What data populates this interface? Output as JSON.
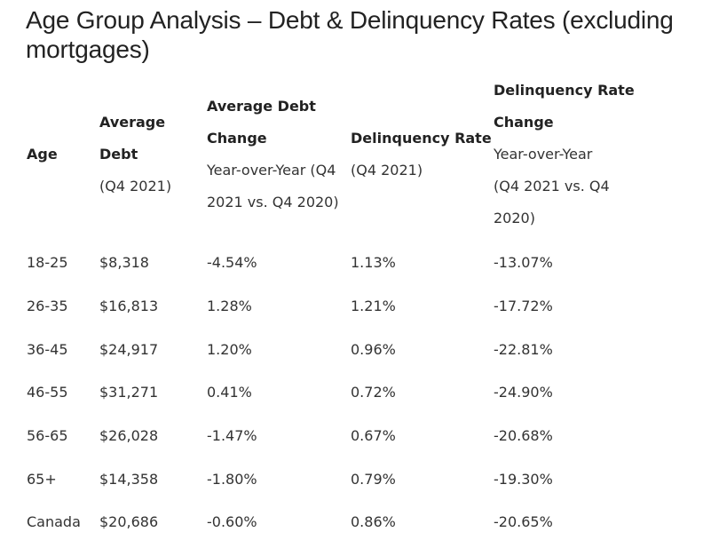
{
  "title": "Age Group Analysis – Debt & Delinquency Rates (excluding mortgages)",
  "table": {
    "headers": [
      {
        "main": "Age",
        "sub": ""
      },
      {
        "main": "Average Debt",
        "sub": "(Q4 2021)"
      },
      {
        "main": "Average Debt Change",
        "sub": "Year-over-Year (Q4 2021 vs. Q4 2020)"
      },
      {
        "main": "Delinquency Rate",
        "sub": "(Q4 2021)"
      },
      {
        "main": "Delinquency Rate Change",
        "sub": "Year-over-Year (Q4 2021 vs. Q4 2020)"
      }
    ],
    "rows": [
      {
        "age": "18-25",
        "avg_debt": "$8,318",
        "avg_debt_change": "-4.54%",
        "delinquency_rate": "1.13%",
        "delinquency_rate_change": "-13.07%"
      },
      {
        "age": "26-35",
        "avg_debt": "$16,813",
        "avg_debt_change": "1.28%",
        "delinquency_rate": "1.21%",
        "delinquency_rate_change": "-17.72%"
      },
      {
        "age": "36-45",
        "avg_debt": "$24,917",
        "avg_debt_change": "1.20%",
        "delinquency_rate": "0.96%",
        "delinquency_rate_change": "-22.81%"
      },
      {
        "age": "46-55",
        "avg_debt": "$31,271",
        "avg_debt_change": "0.41%",
        "delinquency_rate": "0.72%",
        "delinquency_rate_change": "-24.90%"
      },
      {
        "age": "56-65",
        "avg_debt": "$26,028",
        "avg_debt_change": "-1.47%",
        "delinquency_rate": "0.67%",
        "delinquency_rate_change": "-20.68%"
      },
      {
        "age": "65+",
        "avg_debt": "$14,358",
        "avg_debt_change": "-1.80%",
        "delinquency_rate": "0.79%",
        "delinquency_rate_change": "-19.30%"
      },
      {
        "age": "Canada",
        "avg_debt": "$20,686",
        "avg_debt_change": "-0.60%",
        "delinquency_rate": "0.86%",
        "delinquency_rate_change": "-20.65%"
      }
    ]
  }
}
